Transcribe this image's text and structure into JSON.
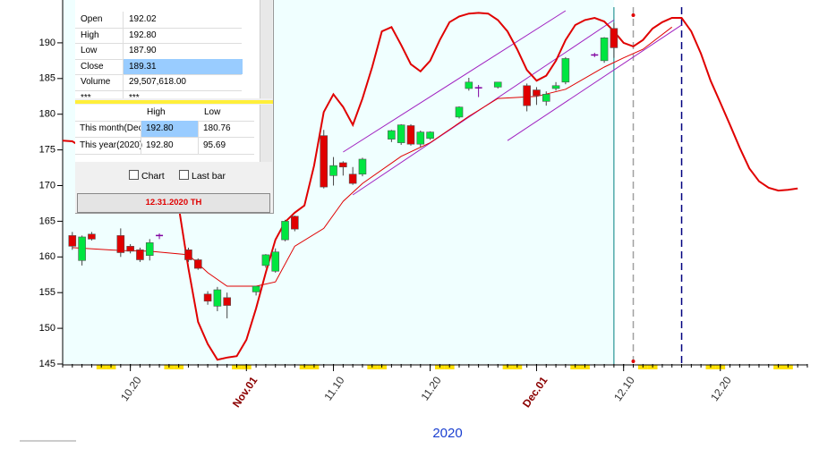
{
  "chart_data": {
    "type": "candlestick",
    "xlabel": "2020",
    "xlim": [
      "2020-10-13",
      "2020-12-29"
    ],
    "xticks": [
      {
        "value": "2020-10-20",
        "label": "10.20"
      },
      {
        "value": "2020-11-01",
        "label": "Nov.01"
      },
      {
        "value": "2020-11-10",
        "label": "11.10"
      },
      {
        "value": "2020-11-20",
        "label": "11.20"
      },
      {
        "value": "2020-12-01",
        "label": "Dec.01"
      },
      {
        "value": "2020-12-10",
        "label": "12.10"
      },
      {
        "value": "2020-12-20",
        "label": "12.20"
      }
    ],
    "ylim": [
      145,
      195
    ],
    "yticks": [
      145,
      150,
      155,
      160,
      165,
      170,
      175,
      180,
      185,
      190
    ],
    "up_color": "#00e640",
    "down_color": "#e00000",
    "doji_color": "#8000a0",
    "x": [
      "2020-10-14",
      "2020-10-15",
      "2020-10-16",
      "2020-10-19",
      "2020-10-20",
      "2020-10-21",
      "2020-10-22",
      "2020-10-23",
      "2020-10-26",
      "2020-10-27",
      "2020-10-28",
      "2020-10-29",
      "2020-10-30",
      "2020-11-02",
      "2020-11-03",
      "2020-11-04",
      "2020-11-05",
      "2020-11-06",
      "2020-11-09",
      "2020-11-10",
      "2020-11-11",
      "2020-11-12",
      "2020-11-13",
      "2020-11-16",
      "2020-11-17",
      "2020-11-18",
      "2020-11-19",
      "2020-11-20",
      "2020-11-23",
      "2020-11-24",
      "2020-11-25",
      "2020-11-27",
      "2020-11-30",
      "2020-12-01",
      "2020-12-02",
      "2020-12-03",
      "2020-12-04",
      "2020-12-07",
      "2020-12-08",
      "2020-12-09"
    ],
    "open": [
      163,
      159.5,
      163.2,
      163,
      161.5,
      161,
      160.2,
      163,
      161,
      159.6,
      154.8,
      153.1,
      154.3,
      155.1,
      158.8,
      158,
      162.4,
      165.7,
      177,
      171.4,
      173.2,
      171.6,
      171.6,
      176.5,
      176,
      178.4,
      175.8,
      176.6,
      179.6,
      183.6,
      183.7,
      183.8,
      184,
      183.4,
      181.8,
      183.6,
      184.5,
      188.3,
      187.5,
      192.02
    ],
    "high": [
      163.5,
      163,
      163.5,
      164,
      161.8,
      161.3,
      162.5,
      163.3,
      161.3,
      159.8,
      155.2,
      155.8,
      155,
      155.9,
      160.4,
      161.2,
      165.2,
      165.8,
      177.8,
      174,
      173.4,
      172.6,
      173.9,
      177.8,
      178.6,
      178.6,
      177.7,
      177.6,
      181.1,
      185.1,
      184.1,
      184.5,
      184.3,
      183.8,
      183.2,
      184.5,
      188,
      188.6,
      190.8,
      192.8
    ],
    "low": [
      161,
      158.8,
      162.3,
      160,
      160.5,
      159.3,
      159.5,
      162.5,
      159.3,
      158.2,
      153.3,
      152.4,
      151.4,
      154.6,
      158.5,
      157.8,
      162.2,
      163.6,
      169.6,
      170,
      171.4,
      170.1,
      171.3,
      176.1,
      175.7,
      175.6,
      175.4,
      176.4,
      179.4,
      183.3,
      182.4,
      183.6,
      180.4,
      181.3,
      181.2,
      183.3,
      184.2,
      188,
      187.2,
      187.9
    ],
    "close": [
      161.5,
      162.8,
      162.5,
      160.6,
      160.8,
      159.6,
      162,
      163,
      159.6,
      158.4,
      153.8,
      155.4,
      153.2,
      155.9,
      160.3,
      160.7,
      165,
      163.9,
      169.8,
      172.8,
      172.6,
      170.3,
      173.7,
      177.7,
      178.5,
      175.8,
      177.5,
      177.5,
      181,
      184.5,
      183.7,
      184.5,
      181.2,
      182.6,
      182.8,
      184,
      187.8,
      188.3,
      190.7,
      189.31
    ],
    "lines": [
      {
        "color": "#e00000",
        "width": 2,
        "x": [
          "2020-10-13",
          "2020-10-14",
          "2020-10-25",
          "2020-10-26",
          "2020-10-27",
          "2020-10-28",
          "2020-10-29",
          "2020-10-30",
          "2020-10-31",
          "2020-11-01",
          "2020-11-02",
          "2020-11-03",
          "2020-11-04",
          "2020-11-05",
          "2020-11-06",
          "2020-11-07",
          "2020-11-08",
          "2020-11-09",
          "2020-11-10",
          "2020-11-11",
          "2020-11-12",
          "2020-11-13",
          "2020-11-14",
          "2020-11-15",
          "2020-11-16",
          "2020-11-17",
          "2020-11-18",
          "2020-11-19",
          "2020-11-20",
          "2020-11-21",
          "2020-11-22",
          "2020-11-23",
          "2020-11-24",
          "2020-11-25",
          "2020-11-26",
          "2020-11-27",
          "2020-11-28",
          "2020-11-29",
          "2020-11-30",
          "2020-12-01",
          "2020-12-02",
          "2020-12-03",
          "2020-12-04",
          "2020-12-05",
          "2020-12-06",
          "2020-12-07",
          "2020-12-08",
          "2020-12-09",
          "2020-12-10",
          "2020-12-11",
          "2020-12-12",
          "2020-12-13",
          "2020-12-14",
          "2020-12-15",
          "2020-12-16",
          "2020-12-17",
          "2020-12-18",
          "2020-12-19",
          "2020-12-20",
          "2020-12-21",
          "2020-12-22",
          "2020-12-23",
          "2020-12-24",
          "2020-12-25",
          "2020-12-26",
          "2020-12-27",
          "2020-12-28"
        ],
        "values": [
          176.3,
          176.2,
          167,
          158.4,
          150.9,
          147.8,
          145.6,
          145.9,
          146.1,
          148.4,
          152.8,
          157.8,
          162.4,
          164.9,
          166.2,
          167.2,
          172.8,
          180.3,
          182.8,
          181,
          178.5,
          182.2,
          186.6,
          191.6,
          192.2,
          189.7,
          187,
          186,
          187.5,
          190.4,
          192.9,
          193.7,
          194.1,
          194.2,
          194.1,
          193.2,
          191.6,
          189.1,
          186.2,
          184.7,
          185.4,
          187.5,
          190.4,
          192.5,
          193.2,
          193.5,
          193,
          191.6,
          190,
          189.5,
          190.4,
          192,
          192.9,
          193.5,
          193.5,
          191.6,
          188.5,
          184.7,
          181.6,
          178.5,
          175.3,
          172.4,
          170.6,
          169.7,
          169.3,
          169.4,
          169.6
        ]
      },
      {
        "color": "#e00000",
        "width": 1,
        "x": [
          "2020-10-14",
          "2020-10-19",
          "2020-10-22",
          "2020-10-26",
          "2020-10-28",
          "2020-10-30",
          "2020-11-02",
          "2020-11-04",
          "2020-11-06",
          "2020-11-09",
          "2020-11-11",
          "2020-11-13",
          "2020-11-17",
          "2020-11-20",
          "2020-11-24",
          "2020-11-27",
          "2020-12-01",
          "2020-12-04",
          "2020-12-08",
          "2020-12-10",
          "2020-12-12",
          "2020-12-15"
        ],
        "values": [
          161.3,
          160.9,
          160.8,
          160.3,
          157.8,
          155.9,
          155.9,
          156.5,
          161.5,
          164,
          167.8,
          170.3,
          174.1,
          176,
          179.7,
          182.2,
          182.5,
          183.5,
          186.6,
          187.9,
          189.1,
          192.2
        ]
      }
    ],
    "channels": [
      {
        "color": "#a020c0",
        "x": [
          "2020-11-11",
          "2020-12-04"
        ],
        "values": [
          174.7,
          194.5
        ]
      },
      {
        "color": "#a020c0",
        "x": [
          "2020-11-12",
          "2020-12-09"
        ],
        "values": [
          168.7,
          193.2
        ]
      },
      {
        "color": "#a020c0",
        "x": [
          "2020-11-28",
          "2020-12-16"
        ],
        "values": [
          176.3,
          192.5
        ]
      }
    ],
    "vlines": [
      {
        "x": "2020-12-09",
        "color": "#008080",
        "dash": false
      },
      {
        "x": "2020-12-11",
        "color": "#a0a0a0",
        "dash": true
      },
      {
        "x": "2020-12-16",
        "color": "#000080",
        "dash": true
      }
    ]
  },
  "info_table": {
    "rows": [
      [
        "Open",
        "192.02"
      ],
      [
        "High",
        "192.80"
      ],
      [
        "Low",
        "187.90"
      ],
      [
        "Close",
        "189.31"
      ],
      [
        "Volume",
        "29,507,618.00"
      ],
      [
        "***",
        "***"
      ]
    ],
    "highlight_row": 3
  },
  "range_table": {
    "columns": [
      "High",
      "Low"
    ],
    "rows": [
      {
        "label": "This month(Dec)",
        "values": [
          "192.80",
          "180.76"
        ]
      },
      {
        "label": "This year(2020)",
        "values": [
          "192.80",
          "95.69"
        ]
      }
    ]
  },
  "checkboxes": [
    "Chart",
    "Last bar"
  ],
  "button": "12.31.2020 TH"
}
